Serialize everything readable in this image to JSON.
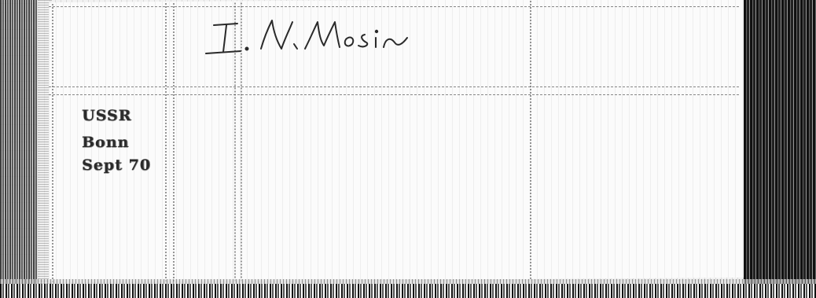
{
  "document": {
    "top_cut_text": "",
    "signature_text": "I. N. Mosin",
    "address": {
      "country": "USSR",
      "city": "Bonn",
      "date": "Sept 70"
    }
  },
  "colors": {
    "ink": "#2b2b2b",
    "paper": "#fbfbfb",
    "scan_border": "#222222"
  }
}
